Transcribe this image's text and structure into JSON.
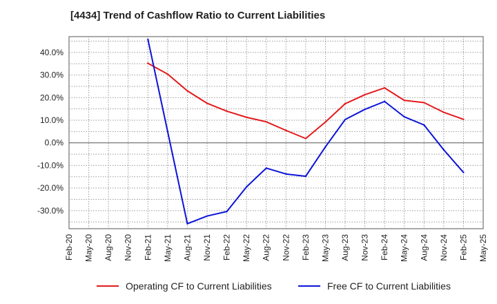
{
  "chart_data": {
    "type": "line",
    "title": "[4434]  Trend of Cashflow Ratio to Current Liabilities",
    "xlabel": "",
    "ylabel": "",
    "categories": [
      "Feb-20",
      "May-20",
      "Aug-20",
      "Nov-20",
      "Feb-21",
      "May-21",
      "Aug-21",
      "Nov-21",
      "Feb-22",
      "May-22",
      "Aug-22",
      "Nov-22",
      "Feb-23",
      "May-23",
      "Aug-23",
      "Nov-23",
      "Feb-24",
      "May-24",
      "Aug-24",
      "Nov-24",
      "Feb-25",
      "May-25"
    ],
    "ylim": [
      -38,
      47
    ],
    "yticks": [
      40,
      30,
      20,
      10,
      0,
      -10,
      -20,
      -30
    ],
    "ytick_labels": [
      "40.0%",
      "30.0%",
      "20.0%",
      "10.0%",
      "0.0%",
      "-10.0%",
      "-20.0%",
      "-30.0%"
    ],
    "grid": true,
    "legend_position": "bottom",
    "series": [
      {
        "name": "Operating CF to Current Liabilities",
        "color": "#e31a1c",
        "points": [
          {
            "x": "Feb-21",
            "y": 35.2
          },
          {
            "x": "May-21",
            "y": 30.4
          },
          {
            "x": "Aug-21",
            "y": 23.0
          },
          {
            "x": "Nov-21",
            "y": 17.5
          },
          {
            "x": "Feb-22",
            "y": 14.0
          },
          {
            "x": "May-22",
            "y": 11.3
          },
          {
            "x": "Aug-22",
            "y": 9.3
          },
          {
            "x": "Nov-22",
            "y": 5.5
          },
          {
            "x": "Feb-23",
            "y": 1.9
          },
          {
            "x": "May-23",
            "y": 9.2
          },
          {
            "x": "Aug-23",
            "y": 17.3
          },
          {
            "x": "Nov-23",
            "y": 21.3
          },
          {
            "x": "Feb-24",
            "y": 24.3
          },
          {
            "x": "May-24",
            "y": 18.8
          },
          {
            "x": "Aug-24",
            "y": 17.8
          },
          {
            "x": "Nov-24",
            "y": 13.5
          },
          {
            "x": "Feb-25",
            "y": 10.4
          }
        ]
      },
      {
        "name": "Free CF to Current Liabilities",
        "color": "#0b13d8",
        "points": [
          {
            "x": "Feb-21",
            "y": 45.8
          },
          {
            "x": "May-21",
            "y": 5.0
          },
          {
            "x": "Aug-21",
            "y": -35.8
          },
          {
            "x": "Nov-21",
            "y": -32.4
          },
          {
            "x": "Feb-22",
            "y": -30.4
          },
          {
            "x": "May-22",
            "y": -19.5
          },
          {
            "x": "Aug-22",
            "y": -11.2
          },
          {
            "x": "Nov-22",
            "y": -13.8
          },
          {
            "x": "Feb-23",
            "y": -14.8
          },
          {
            "x": "May-23",
            "y": -1.8
          },
          {
            "x": "Aug-23",
            "y": 10.3
          },
          {
            "x": "Nov-23",
            "y": 14.8
          },
          {
            "x": "Feb-24",
            "y": 18.3
          },
          {
            "x": "May-24",
            "y": 11.5
          },
          {
            "x": "Aug-24",
            "y": 7.9
          },
          {
            "x": "Nov-24",
            "y": -3.1
          },
          {
            "x": "Feb-25",
            "y": -13.1
          }
        ]
      }
    ]
  }
}
